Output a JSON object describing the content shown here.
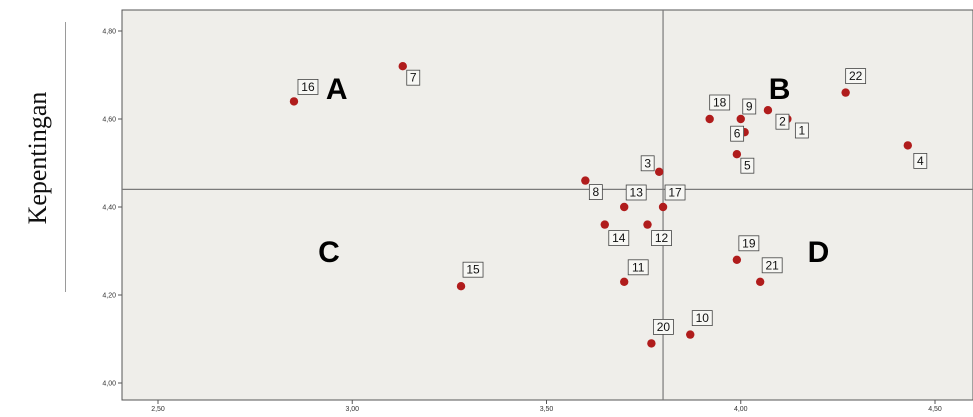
{
  "chart_data": {
    "type": "scatter",
    "xlabel": "",
    "ylabel": "Kepentingan",
    "xlim": [
      2.5,
      4.5
    ],
    "ylim": [
      4.0,
      4.8
    ],
    "xticks": [
      "2,50",
      "3,00",
      "3,50",
      "4,00",
      "4,50"
    ],
    "xtick_values": [
      2.5,
      3.0,
      3.5,
      4.0,
      4.5
    ],
    "yticks": [
      "4,00",
      "4,20",
      "4,40",
      "4,60",
      "4,80"
    ],
    "ytick_values": [
      4.0,
      4.2,
      4.4,
      4.6,
      4.8
    ],
    "reference_lines": {
      "x": 3.8,
      "y": 4.44
    },
    "quadrant_labels": [
      {
        "text": "A",
        "x": 2.96,
        "y": 4.67
      },
      {
        "text": "B",
        "x": 4.1,
        "y": 4.67
      },
      {
        "text": "C",
        "x": 2.94,
        "y": 4.3
      },
      {
        "text": "D",
        "x": 4.2,
        "y": 4.3
      }
    ],
    "points": [
      {
        "label": "1",
        "x": 4.12,
        "y": 4.6
      },
      {
        "label": "2",
        "x": 4.07,
        "y": 4.62
      },
      {
        "label": "3",
        "x": 3.79,
        "y": 4.48
      },
      {
        "label": "4",
        "x": 4.43,
        "y": 4.54
      },
      {
        "label": "5",
        "x": 3.99,
        "y": 4.52
      },
      {
        "label": "6",
        "x": 4.01,
        "y": 4.57
      },
      {
        "label": "7",
        "x": 3.13,
        "y": 4.72
      },
      {
        "label": "8",
        "x": 3.6,
        "y": 4.46
      },
      {
        "label": "9",
        "x": 4.0,
        "y": 4.6
      },
      {
        "label": "10",
        "x": 3.87,
        "y": 4.11
      },
      {
        "label": "11",
        "x": 3.7,
        "y": 4.23
      },
      {
        "label": "12",
        "x": 3.76,
        "y": 4.36
      },
      {
        "label": "13",
        "x": 3.7,
        "y": 4.4
      },
      {
        "label": "14",
        "x": 3.65,
        "y": 4.36
      },
      {
        "label": "15",
        "x": 3.28,
        "y": 4.22
      },
      {
        "label": "16",
        "x": 2.85,
        "y": 4.64
      },
      {
        "label": "17",
        "x": 3.8,
        "y": 4.4
      },
      {
        "label": "18",
        "x": 3.92,
        "y": 4.6
      },
      {
        "label": "19",
        "x": 3.99,
        "y": 4.28
      },
      {
        "label": "20",
        "x": 3.77,
        "y": 4.09
      },
      {
        "label": "21",
        "x": 4.05,
        "y": 4.23
      },
      {
        "label": "22",
        "x": 4.27,
        "y": 4.66
      }
    ],
    "colors": {
      "marker": "#b01c1c",
      "plot_background": "#efeeea",
      "reference_line": "#7a7a7a",
      "label_box_fill": "#f7f7f4",
      "label_box_stroke": "#444444"
    },
    "grid": false
  }
}
